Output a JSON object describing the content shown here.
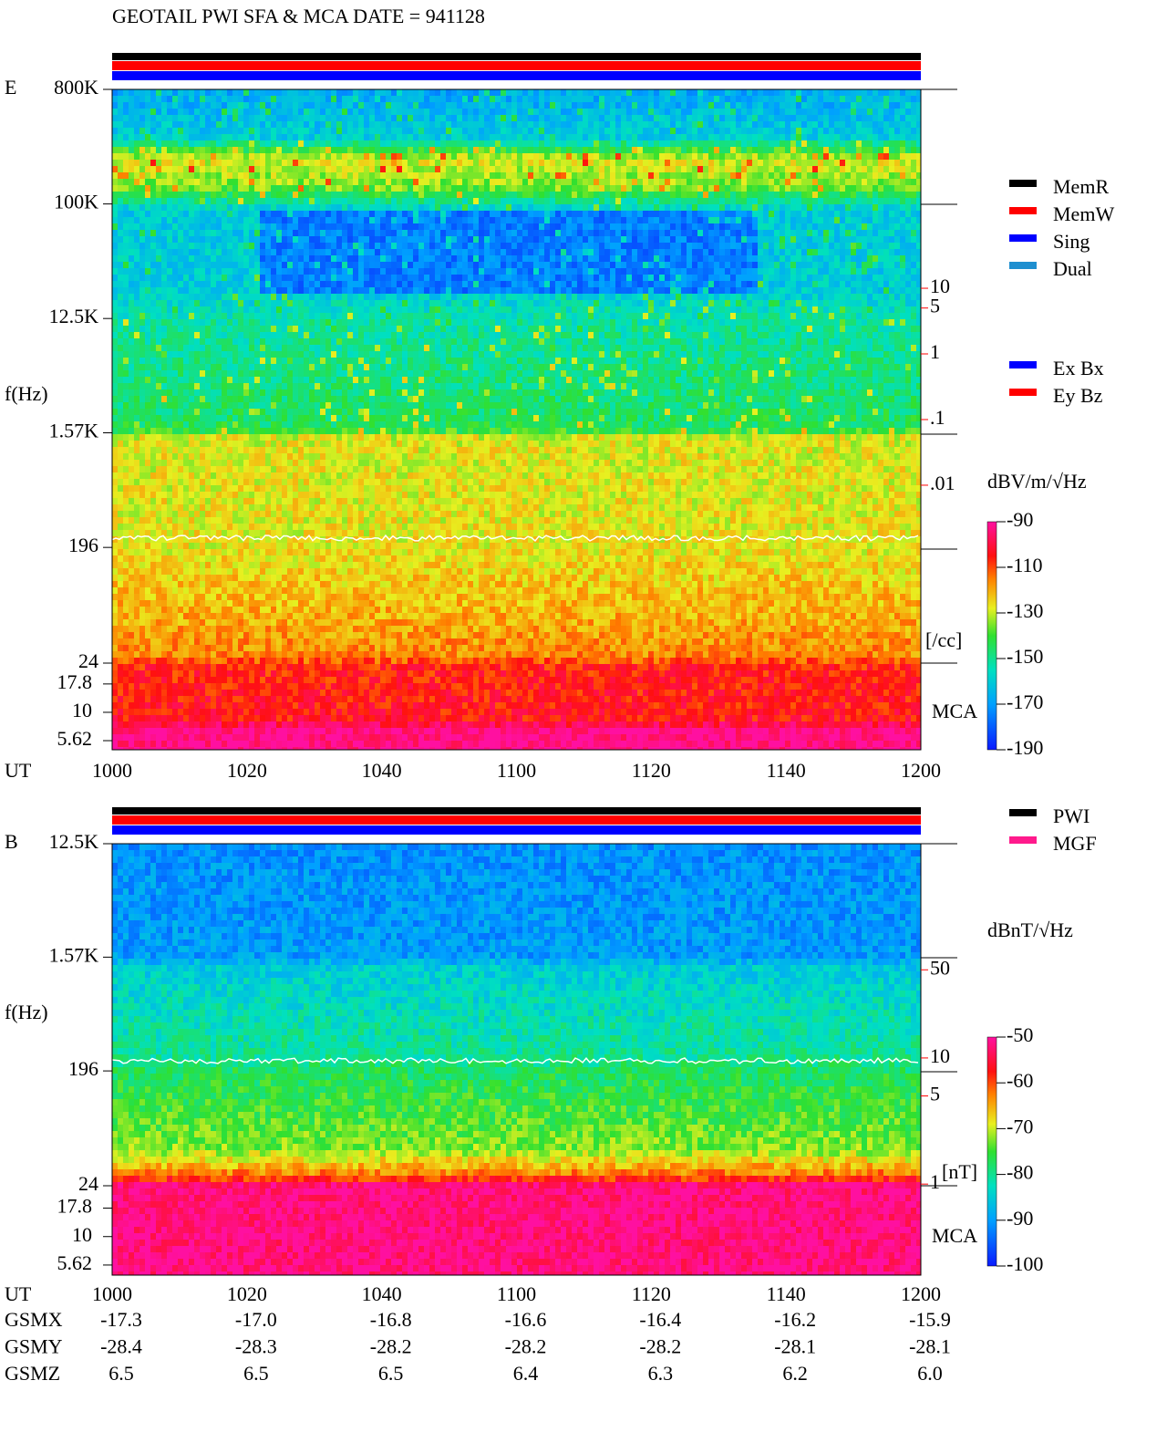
{
  "title": "GEOTAIL  PWI SFA & MCA   DATE = 941128",
  "chart_data": [
    {
      "type": "spectrogram",
      "panel_label": "E",
      "y_label": "f(Hz)",
      "x_label": "UT",
      "log_y": true,
      "ylim": [
        24,
        800000
      ],
      "yticks": [
        {
          "value": 800000,
          "label": "800K"
        },
        {
          "value": 100000,
          "label": "100K"
        },
        {
          "value": 12500,
          "label": "12.5K"
        },
        {
          "value": 1570,
          "label": "1.57K"
        },
        196,
        24
      ],
      "mca_label": "MCA",
      "mca_ylim": [
        4.67,
        27.2
      ],
      "mca_yticks": [
        17.8,
        10,
        5.62
      ],
      "xticks": [
        "1000",
        "1020",
        "1040",
        "1100",
        "1120",
        "1140",
        "1200"
      ],
      "status_bars": [
        {
          "color": "#000000"
        },
        {
          "color": "#ff0000"
        },
        {
          "color": "#0000ff"
        }
      ],
      "legend": [
        {
          "name": "MemR",
          "color": "#000000"
        },
        {
          "name": "MemW",
          "color": "#ff0000"
        },
        {
          "name": "Sing",
          "color": "#0000ff"
        },
        {
          "name": "Dual",
          "color": "#1e8fd0"
        }
      ],
      "legend2": [
        {
          "name": "Ex Bx",
          "color": "#0000ff"
        },
        {
          "name": "Ey Bz",
          "color": "#ff0000"
        }
      ],
      "colorbar": {
        "label": "dBV/m/√Hz",
        "ylim": [
          -190,
          -90
        ],
        "yticks": [
          -90,
          -110,
          -130,
          -150,
          -170,
          -190
        ]
      },
      "y3lim": [
        1.95e-05,
        10700
      ],
      "y3ticks": [
        10,
        5,
        1,
        {
          "value": 0.1,
          "label": ".1"
        },
        {
          "value": 0.01,
          "label": ".01"
        }
      ],
      "y3_label": "[/cc]",
      "y3_color": "#ff0000"
    },
    {
      "type": "spectrogram",
      "panel_label": "B",
      "y_label": "f(Hz)",
      "x_label": "UT",
      "log_y": true,
      "ylim": [
        24,
        12500
      ],
      "yticks": [
        {
          "value": 12500,
          "label": "12.5K"
        },
        {
          "value": 1570,
          "label": "1.57K"
        },
        196,
        24
      ],
      "mca_label": "MCA",
      "mca_ylim": [
        4.58,
        28
      ],
      "mca_yticks": [
        17.8,
        10,
        5.62
      ],
      "xticks": [
        "1000",
        "1020",
        "1040",
        "1100",
        "1120",
        "1140",
        "1200"
      ],
      "status_bars": [
        {
          "color": "#000000"
        },
        {
          "color": "#ff0000"
        },
        {
          "color": "#0000ff"
        }
      ],
      "legend": [
        {
          "name": "PWI",
          "color": "#000000"
        },
        {
          "name": "MGF",
          "color": "#ff1a8c"
        }
      ],
      "colorbar": {
        "label": "dBnT/√Hz",
        "ylim": [
          -100,
          -50
        ],
        "yticks": [
          -50,
          -60,
          -70,
          -80,
          -90,
          -100
        ]
      },
      "y3lim": [
        0.97,
        500
      ],
      "y3ticks": [
        50,
        10,
        5,
        1
      ],
      "y3_label": "[nT]",
      "y3_color": "#ff0000"
    }
  ],
  "orbit": [
    {
      "name": "GSMX",
      "values": [
        "-17.3",
        "-17.0",
        "-16.8",
        "-16.6",
        "-16.4",
        "-16.2",
        "-15.9"
      ]
    },
    {
      "name": "GSMY",
      "values": [
        "-28.4",
        "-28.3",
        "-28.2",
        "-28.2",
        "-28.2",
        "-28.1",
        "-28.1"
      ]
    },
    {
      "name": "GSMZ",
      "values": [
        "6.5",
        "6.5",
        "6.5",
        "6.4",
        "6.3",
        "6.2",
        "6.0"
      ]
    }
  ]
}
